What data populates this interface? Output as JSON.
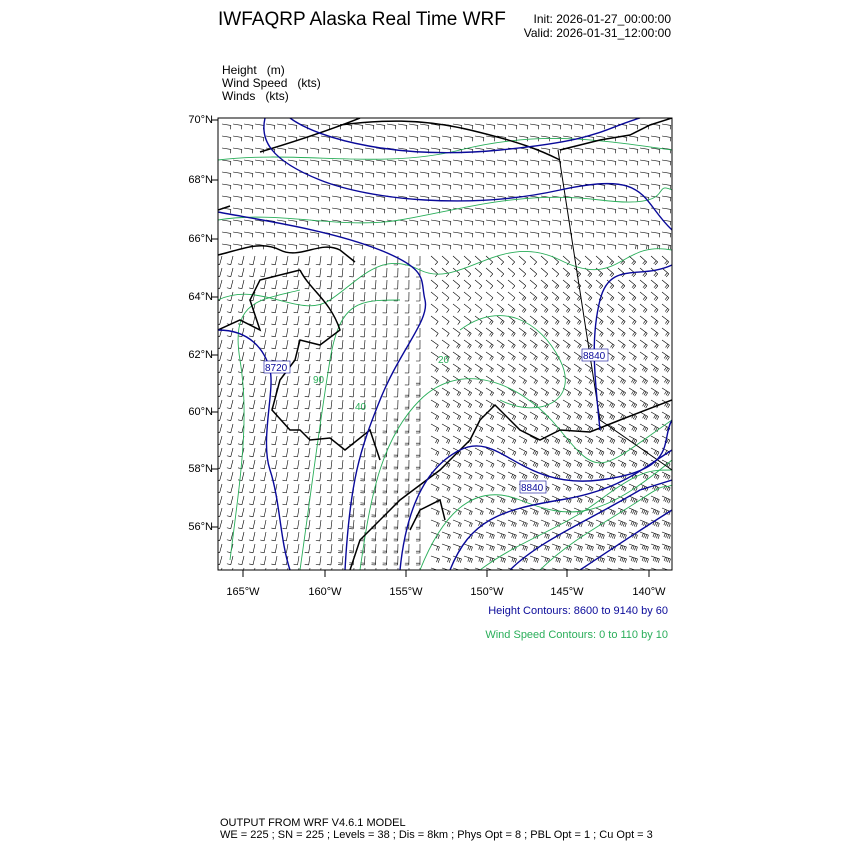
{
  "header": {
    "title": "IWFAQRP Alaska Real Time WRF",
    "init": "Init: 2026-01-27_00:00:00",
    "valid": "Valid: 2026-01-31_12:00:00"
  },
  "fields": [
    {
      "name": "Height",
      "unit": "(m)"
    },
    {
      "name": "Wind Speed",
      "unit": "(kts)"
    },
    {
      "name": "Winds",
      "unit": "(kts)"
    }
  ],
  "map": {
    "lat_labels": [
      "70°N",
      "68°N",
      "66°N",
      "64°N",
      "62°N",
      "60°N",
      "58°N",
      "56°N"
    ],
    "lon_labels": [
      "165°W",
      "160°W",
      "155°W",
      "150°W",
      "145°W",
      "140°W"
    ],
    "height_contour_labels": [
      "8720",
      "8840",
      "8840"
    ],
    "wind_speed_contour_labels": [
      "20",
      "90",
      "40"
    ],
    "colors": {
      "height": "#0a0a9a",
      "wind_speed": "#2aae5a",
      "barbs": "#000000",
      "coast": "#000000"
    }
  },
  "legend": {
    "height_contours": "Height Contours: 8600 to 9140 by 60",
    "wind_speed_contours": "Wind Speed Contours: 0 to 110 by 10"
  },
  "footer": {
    "line1": "OUTPUT FROM WRF V4.6.1 MODEL",
    "line2": "WE = 225 ; SN = 225 ; Levels = 38 ; Dis = 8km ; Phys Opt = 8 ; PBL Opt = 1 ; Cu Opt = 3"
  }
}
